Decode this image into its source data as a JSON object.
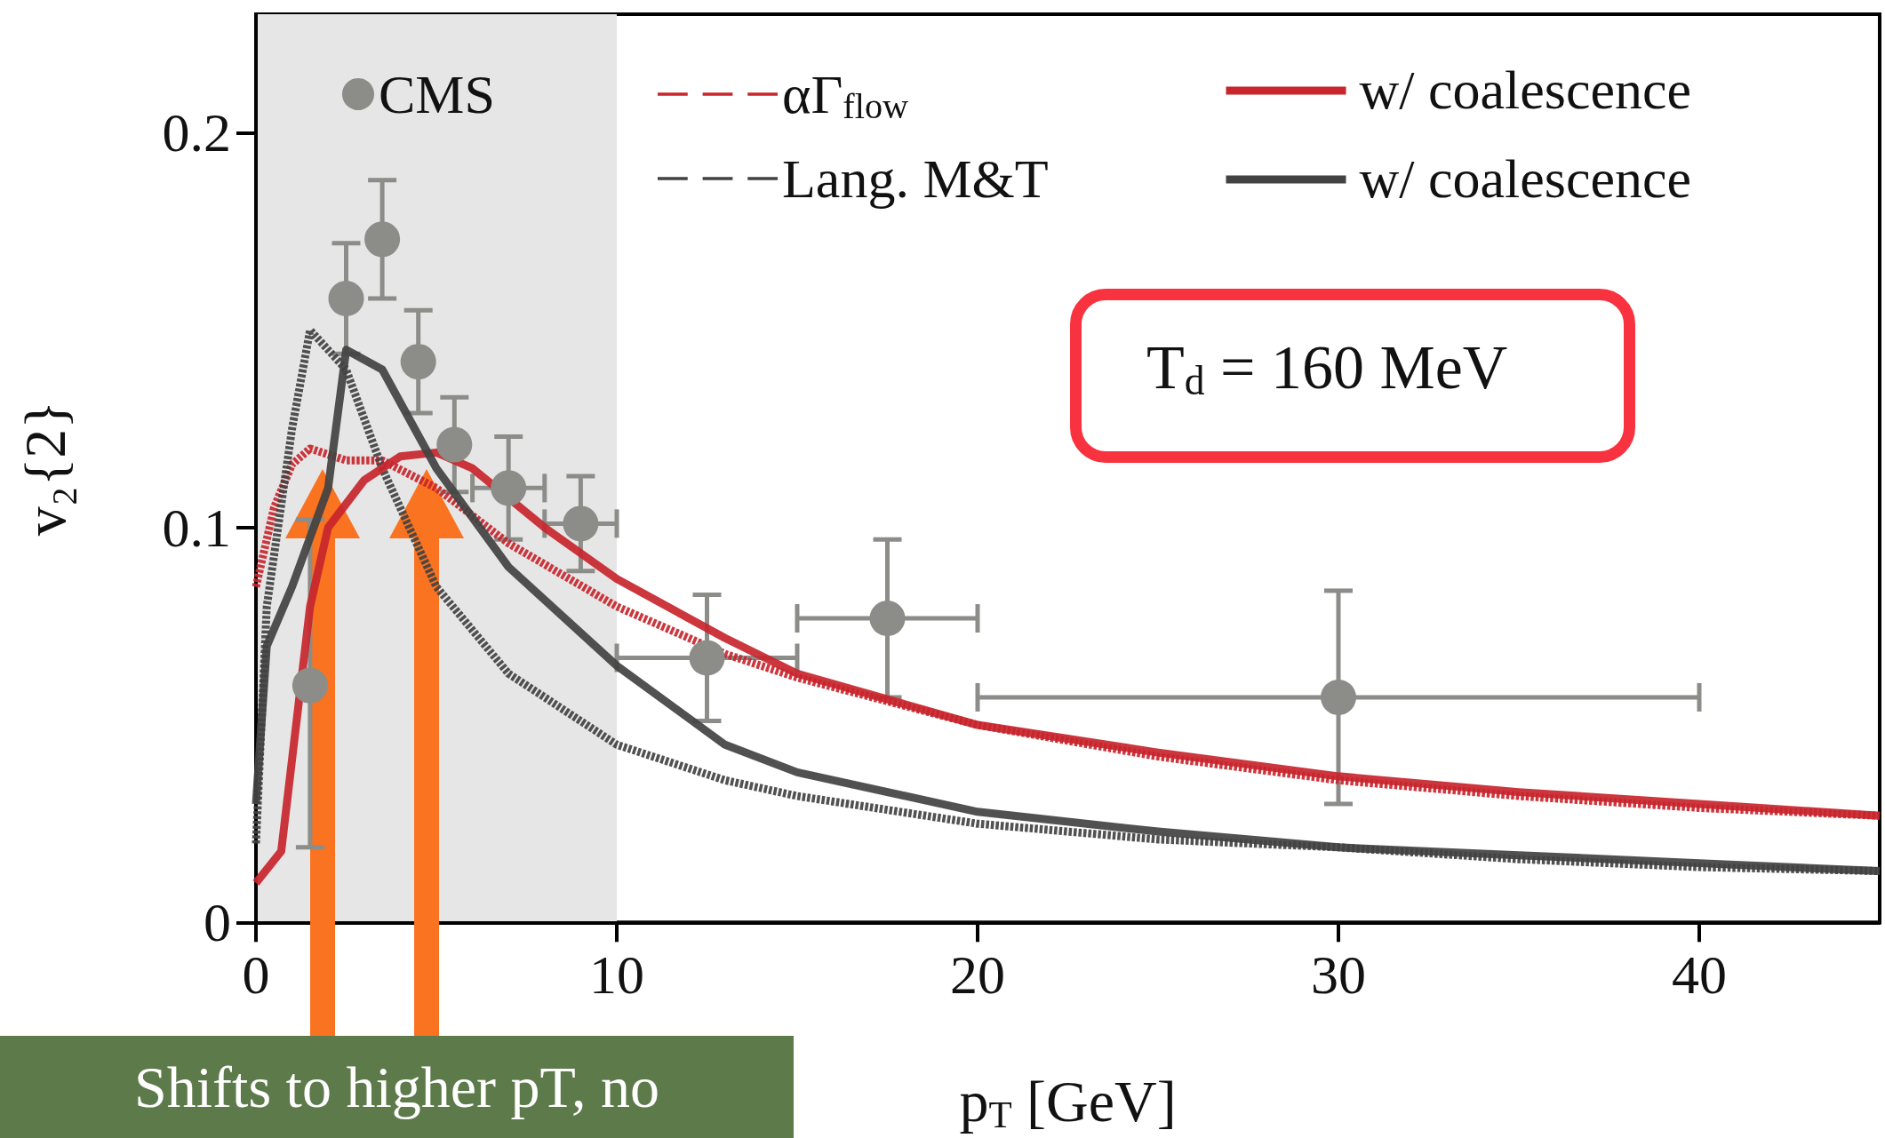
{
  "chart_data": {
    "type": "line",
    "xlabel": "p$_{T}$ [GeV]",
    "ylabel": "v₂{2}",
    "xlim": [
      0,
      45
    ],
    "xticks": [
      0,
      10,
      20,
      30,
      40
    ],
    "ylim": [
      0,
      0.23
    ],
    "yticks": [
      0,
      0.1,
      0.2
    ],
    "legend": "top",
    "grid": false,
    "bands": [
      {
        "axis": "x",
        "from": 0,
        "to": 10,
        "color": "#e6e6e6"
      }
    ],
    "annotations": [
      "T$_{d}$ = 160 MeV",
      "Shifts to higher pT, no"
    ],
    "series": [
      {
        "name": "CMS",
        "type": "scatter",
        "marker": "circle",
        "color": "#8c8d88",
        "x": [
          1.5,
          2.5,
          3.5,
          4.5,
          5.5,
          7,
          9,
          12.5,
          17.5,
          30
        ],
        "values": [
          0.06,
          0.158,
          0.173,
          0.142,
          0.121,
          0.11,
          0.101,
          0.067,
          0.077,
          0.057
        ],
        "errors": [
          [
            0.019,
            0.102
          ],
          0.014,
          0.015,
          0.013,
          0.012,
          0.013,
          0.012,
          0.016,
          0.02,
          0.027
        ],
        "xerrors": [
          null,
          null,
          null,
          null,
          null,
          1,
          1,
          2.5,
          2.5,
          10
        ]
      },
      {
        "name": "αΓ$_{flow}$",
        "line_style": "dashed",
        "color": "#c8252c",
        "x": [
          0,
          0.5,
          1,
          1.5,
          2.5,
          3.5,
          5,
          7,
          10,
          13,
          15,
          20,
          25,
          30,
          35,
          40,
          45
        ],
        "values": [
          0.085,
          0.105,
          0.116,
          0.12,
          0.117,
          0.117,
          0.11,
          0.096,
          0.08,
          0.068,
          0.062,
          0.05,
          0.042,
          0.036,
          0.032,
          0.029,
          0.027
        ]
      },
      {
        "name": "Lang. M&T",
        "line_style": "dashed",
        "color": "#424242",
        "x": [
          0,
          0.3,
          1,
          1.5,
          2.5,
          3.5,
          5,
          7,
          10,
          13,
          15,
          20,
          25,
          30,
          35,
          40,
          45
        ],
        "values": [
          0.02,
          0.08,
          0.125,
          0.15,
          0.14,
          0.115,
          0.085,
          0.063,
          0.045,
          0.036,
          0.032,
          0.025,
          0.021,
          0.019,
          0.016,
          0.014,
          0.013
        ]
      },
      {
        "name": "w/ coalescence",
        "line_style": "solid",
        "color": "#c8252c",
        "x": [
          0,
          0.7,
          1.5,
          2,
          3,
          4,
          5,
          6,
          8,
          10,
          13,
          15,
          20,
          25,
          30,
          35,
          40,
          45
        ],
        "values": [
          0.01,
          0.018,
          0.08,
          0.1,
          0.112,
          0.118,
          0.119,
          0.115,
          0.1,
          0.087,
          0.072,
          0.063,
          0.05,
          0.043,
          0.037,
          0.033,
          0.03,
          0.027
        ]
      },
      {
        "name": "w/ coalescence",
        "line_style": "solid",
        "color": "#424242",
        "x": [
          0,
          0.3,
          1,
          2,
          2.5,
          3.5,
          5,
          7,
          10,
          13,
          15,
          20,
          25,
          30,
          35,
          40,
          45
        ],
        "values": [
          0.03,
          0.07,
          0.085,
          0.11,
          0.145,
          0.14,
          0.115,
          0.09,
          0.065,
          0.045,
          0.038,
          0.028,
          0.023,
          0.019,
          0.017,
          0.015,
          0.013
        ]
      }
    ]
  }
}
